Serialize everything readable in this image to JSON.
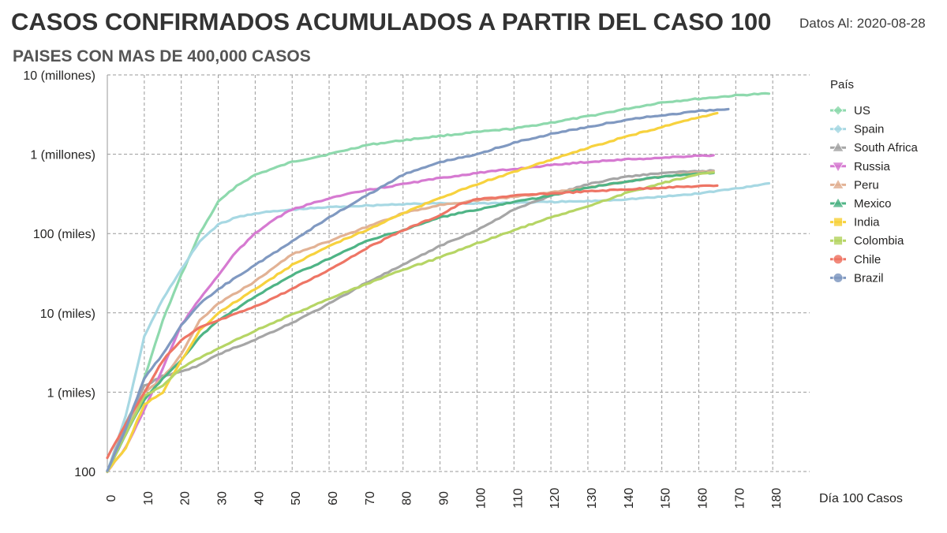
{
  "header": {
    "title": "CASOS CONFIRMADOS ACUMULADOS A PARTIR DEL CASO 100",
    "subtitle": "PAISES CON MAS DE 400,000 CASOS",
    "date_label": "Datos Al: 2020-08-28"
  },
  "chart_data": {
    "type": "line",
    "y_scale": "log",
    "xlabel": "Día 100 Casos",
    "ylabel": "",
    "xlim": [
      0,
      190
    ],
    "ylim": [
      100,
      10000000
    ],
    "grid": true,
    "x_ticks": [
      0,
      10,
      20,
      30,
      40,
      50,
      60,
      70,
      80,
      90,
      100,
      110,
      120,
      130,
      140,
      150,
      160,
      170,
      180
    ],
    "y_ticks": [
      {
        "value": 100,
        "label": "100"
      },
      {
        "value": 1000,
        "label": "1 (miles)"
      },
      {
        "value": 10000,
        "label": "10 (miles)"
      },
      {
        "value": 100000,
        "label": "100 (miles)"
      },
      {
        "value": 1000000,
        "label": "1 (millones)"
      },
      {
        "value": 10000000,
        "label": "10 (millones)"
      }
    ],
    "legend_title": "País",
    "legend_position": "right",
    "series": [
      {
        "name": "US",
        "color": "#8ed9ad",
        "marker": "diamond",
        "points": [
          [
            0,
            100
          ],
          [
            5,
            300
          ],
          [
            10,
            1500
          ],
          [
            15,
            8000
          ],
          [
            20,
            30000
          ],
          [
            25,
            100000
          ],
          [
            30,
            250000
          ],
          [
            35,
            400000
          ],
          [
            40,
            550000
          ],
          [
            50,
            800000
          ],
          [
            60,
            1000000
          ],
          [
            70,
            1300000
          ],
          [
            80,
            1500000
          ],
          [
            90,
            1700000
          ],
          [
            100,
            1900000
          ],
          [
            110,
            2100000
          ],
          [
            120,
            2500000
          ],
          [
            130,
            3000000
          ],
          [
            140,
            3700000
          ],
          [
            150,
            4500000
          ],
          [
            160,
            5000000
          ],
          [
            170,
            5500000
          ],
          [
            175,
            5700000
          ],
          [
            179,
            5800000
          ]
        ]
      },
      {
        "name": "Spain",
        "color": "#a7d8e3",
        "marker": "diamond",
        "points": [
          [
            0,
            100
          ],
          [
            5,
            500
          ],
          [
            8,
            2000
          ],
          [
            10,
            5000
          ],
          [
            15,
            15000
          ],
          [
            20,
            35000
          ],
          [
            25,
            80000
          ],
          [
            30,
            130000
          ],
          [
            35,
            160000
          ],
          [
            40,
            180000
          ],
          [
            50,
            200000
          ],
          [
            60,
            215000
          ],
          [
            70,
            225000
          ],
          [
            80,
            235000
          ],
          [
            90,
            240000
          ],
          [
            100,
            240000
          ],
          [
            110,
            245000
          ],
          [
            120,
            250000
          ],
          [
            130,
            255000
          ],
          [
            140,
            270000
          ],
          [
            150,
            290000
          ],
          [
            160,
            320000
          ],
          [
            170,
            370000
          ],
          [
            179,
            430000
          ]
        ]
      },
      {
        "name": "South Africa",
        "color": "#a6a6a6",
        "marker": "triangle",
        "points": [
          [
            0,
            100
          ],
          [
            5,
            400
          ],
          [
            10,
            1200
          ],
          [
            15,
            1600
          ],
          [
            20,
            1800
          ],
          [
            25,
            2200
          ],
          [
            30,
            3000
          ],
          [
            40,
            4600
          ],
          [
            50,
            7500
          ],
          [
            60,
            13000
          ],
          [
            70,
            24000
          ],
          [
            80,
            40000
          ],
          [
            90,
            70000
          ],
          [
            100,
            110000
          ],
          [
            110,
            200000
          ],
          [
            120,
            300000
          ],
          [
            130,
            420000
          ],
          [
            140,
            520000
          ],
          [
            150,
            580000
          ],
          [
            160,
            610000
          ],
          [
            164,
            620000
          ]
        ]
      },
      {
        "name": "Russia",
        "color": "#d67ad1",
        "marker": "triangle-down",
        "points": [
          [
            0,
            100
          ],
          [
            5,
            200
          ],
          [
            10,
            600
          ],
          [
            15,
            2000
          ],
          [
            20,
            7000
          ],
          [
            25,
            15000
          ],
          [
            30,
            30000
          ],
          [
            35,
            60000
          ],
          [
            40,
            100000
          ],
          [
            45,
            150000
          ],
          [
            50,
            200000
          ],
          [
            60,
            280000
          ],
          [
            70,
            350000
          ],
          [
            80,
            420000
          ],
          [
            90,
            500000
          ],
          [
            100,
            580000
          ],
          [
            110,
            650000
          ],
          [
            120,
            730000
          ],
          [
            130,
            800000
          ],
          [
            140,
            860000
          ],
          [
            150,
            900000
          ],
          [
            160,
            960000
          ],
          [
            164,
            970000
          ]
        ]
      },
      {
        "name": "Peru",
        "color": "#e2b295",
        "marker": "triangle",
        "points": [
          [
            0,
            100
          ],
          [
            5,
            300
          ],
          [
            10,
            1000
          ],
          [
            15,
            1500
          ],
          [
            20,
            3000
          ],
          [
            25,
            8000
          ],
          [
            30,
            13000
          ],
          [
            40,
            25000
          ],
          [
            50,
            55000
          ],
          [
            60,
            80000
          ],
          [
            70,
            120000
          ],
          [
            80,
            180000
          ],
          [
            90,
            230000
          ],
          [
            100,
            260000
          ],
          [
            110,
            290000
          ],
          [
            120,
            330000
          ],
          [
            130,
            380000
          ],
          [
            140,
            450000
          ],
          [
            150,
            520000
          ],
          [
            160,
            590000
          ],
          [
            164,
            610000
          ]
        ]
      },
      {
        "name": "Mexico",
        "color": "#4fb486",
        "marker": "triangle",
        "points": [
          [
            0,
            100
          ],
          [
            5,
            300
          ],
          [
            10,
            800
          ],
          [
            15,
            1500
          ],
          [
            20,
            2500
          ],
          [
            25,
            5000
          ],
          [
            30,
            8000
          ],
          [
            40,
            16000
          ],
          [
            50,
            30000
          ],
          [
            60,
            48000
          ],
          [
            70,
            80000
          ],
          [
            80,
            110000
          ],
          [
            90,
            160000
          ],
          [
            100,
            200000
          ],
          [
            110,
            250000
          ],
          [
            120,
            300000
          ],
          [
            130,
            380000
          ],
          [
            140,
            450000
          ],
          [
            150,
            520000
          ],
          [
            160,
            570000
          ],
          [
            164,
            580000
          ]
        ]
      },
      {
        "name": "India",
        "color": "#f7d23e",
        "marker": "square",
        "points": [
          [
            0,
            100
          ],
          [
            5,
            200
          ],
          [
            10,
            700
          ],
          [
            15,
            1000
          ],
          [
            20,
            2500
          ],
          [
            25,
            6000
          ],
          [
            30,
            10000
          ],
          [
            40,
            20000
          ],
          [
            50,
            40000
          ],
          [
            60,
            70000
          ],
          [
            70,
            110000
          ],
          [
            80,
            180000
          ],
          [
            90,
            280000
          ],
          [
            100,
            420000
          ],
          [
            110,
            600000
          ],
          [
            120,
            850000
          ],
          [
            130,
            1200000
          ],
          [
            140,
            1650000
          ],
          [
            150,
            2200000
          ],
          [
            160,
            2900000
          ],
          [
            165,
            3300000
          ]
        ]
      },
      {
        "name": "Colombia",
        "color": "#b6d565",
        "marker": "square",
        "points": [
          [
            0,
            100
          ],
          [
            5,
            300
          ],
          [
            10,
            900
          ],
          [
            15,
            1200
          ],
          [
            20,
            2000
          ],
          [
            25,
            2700
          ],
          [
            30,
            3500
          ],
          [
            40,
            6000
          ],
          [
            50,
            9500
          ],
          [
            60,
            15000
          ],
          [
            70,
            23000
          ],
          [
            80,
            35000
          ],
          [
            90,
            50000
          ],
          [
            100,
            75000
          ],
          [
            110,
            110000
          ],
          [
            120,
            160000
          ],
          [
            130,
            220000
          ],
          [
            140,
            320000
          ],
          [
            150,
            430000
          ],
          [
            160,
            560000
          ],
          [
            164,
            590000
          ]
        ]
      },
      {
        "name": "Chile",
        "color": "#ee7565",
        "marker": "circle",
        "points": [
          [
            0,
            150
          ],
          [
            5,
            400
          ],
          [
            10,
            1000
          ],
          [
            15,
            2500
          ],
          [
            20,
            4500
          ],
          [
            25,
            6500
          ],
          [
            30,
            8000
          ],
          [
            40,
            12000
          ],
          [
            50,
            20000
          ],
          [
            60,
            35000
          ],
          [
            70,
            65000
          ],
          [
            80,
            110000
          ],
          [
            90,
            170000
          ],
          [
            95,
            230000
          ],
          [
            100,
            270000
          ],
          [
            110,
            300000
          ],
          [
            120,
            320000
          ],
          [
            130,
            340000
          ],
          [
            140,
            360000
          ],
          [
            150,
            380000
          ],
          [
            160,
            395000
          ],
          [
            165,
            402000
          ]
        ]
      },
      {
        "name": "Brazil",
        "color": "#8099c1",
        "marker": "circle",
        "points": [
          [
            0,
            100
          ],
          [
            5,
            350
          ],
          [
            10,
            1500
          ],
          [
            15,
            3000
          ],
          [
            20,
            7000
          ],
          [
            25,
            13000
          ],
          [
            30,
            20000
          ],
          [
            40,
            40000
          ],
          [
            50,
            80000
          ],
          [
            60,
            160000
          ],
          [
            70,
            300000
          ],
          [
            80,
            550000
          ],
          [
            90,
            800000
          ],
          [
            100,
            1000000
          ],
          [
            110,
            1400000
          ],
          [
            120,
            1800000
          ],
          [
            130,
            2200000
          ],
          [
            140,
            2700000
          ],
          [
            150,
            3100000
          ],
          [
            160,
            3500000
          ],
          [
            168,
            3700000
          ]
        ]
      }
    ]
  }
}
